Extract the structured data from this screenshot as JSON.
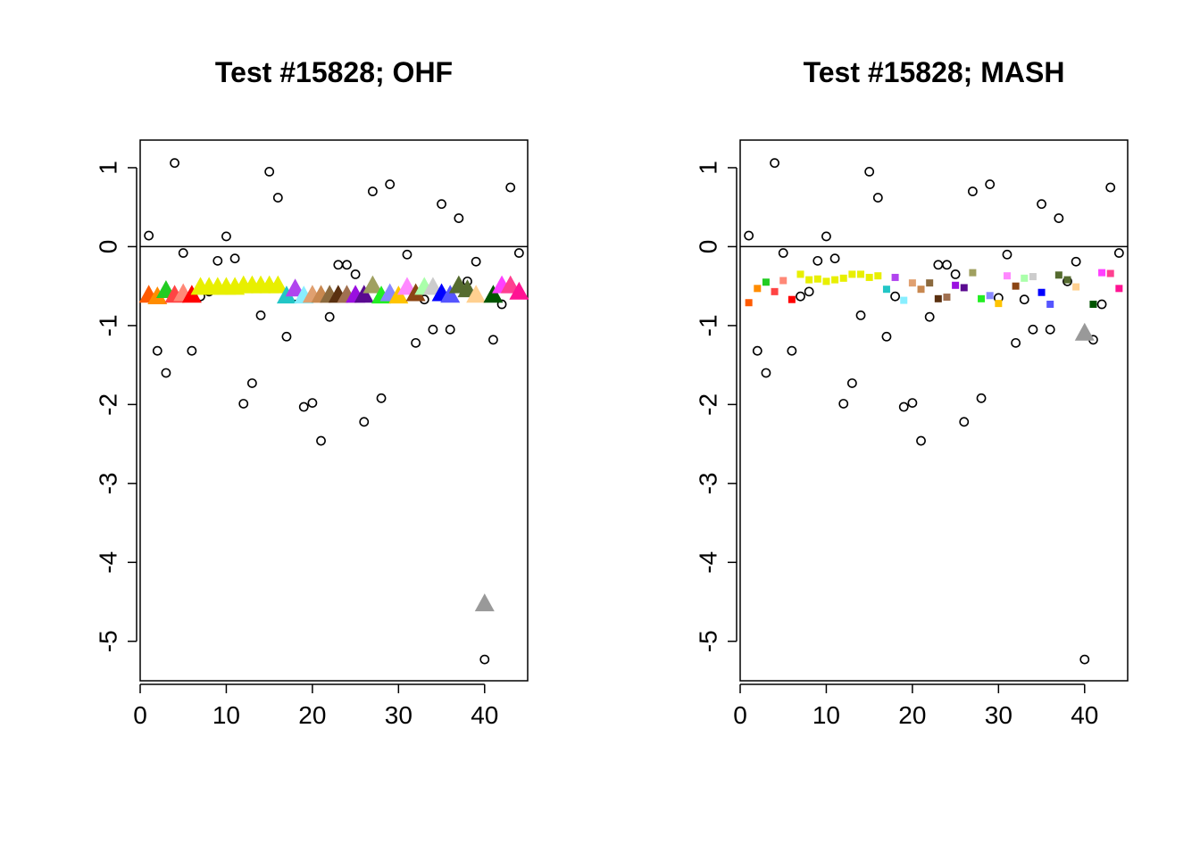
{
  "chart_data": [
    {
      "type": "scatter",
      "title": "Test #15828; OHF",
      "xlabel": "",
      "ylabel": "",
      "xlim": [
        0,
        45
      ],
      "ylim": [
        -5.5,
        1.35
      ],
      "x_ticks": [
        0,
        10,
        20,
        30,
        40
      ],
      "y_ticks": [
        1,
        0,
        -1,
        -2,
        -3,
        -4,
        -5
      ],
      "reference_line_y": 0,
      "series": [
        {
          "marker": "open-circle",
          "color": "#000000",
          "x": [
            1,
            2,
            3,
            4,
            5,
            6,
            7,
            8,
            9,
            10,
            11,
            12,
            13,
            14,
            15,
            16,
            17,
            18,
            19,
            20,
            21,
            22,
            23,
            24,
            25,
            26,
            27,
            28,
            29,
            30,
            31,
            32,
            33,
            34,
            35,
            36,
            37,
            38,
            39,
            40,
            41,
            42,
            43,
            44
          ],
          "y": [
            0.14,
            -1.32,
            -1.6,
            1.06,
            -0.08,
            -1.32,
            -0.63,
            -0.57,
            -0.18,
            0.13,
            -0.15,
            -1.99,
            -1.73,
            -0.87,
            0.95,
            0.62,
            -1.14,
            -0.63,
            -2.03,
            -1.98,
            -2.46,
            -0.89,
            -0.23,
            -0.23,
            -0.35,
            -2.22,
            0.7,
            -1.92,
            0.79,
            -0.65,
            -0.1,
            -1.22,
            -0.67,
            -1.05,
            0.54,
            -1.05,
            0.36,
            -0.44,
            -0.19,
            -5.23,
            -1.18,
            -0.73,
            0.75,
            -0.08
          ]
        },
        {
          "marker": "filled-triangle",
          "x": [
            1,
            2,
            3,
            4,
            5,
            6,
            7,
            8,
            9,
            10,
            11,
            12,
            13,
            14,
            15,
            16,
            17,
            18,
            19,
            20,
            21,
            22,
            23,
            24,
            25,
            26,
            27,
            28,
            29,
            30,
            31,
            32,
            33,
            34,
            35,
            36,
            37,
            38,
            39,
            40,
            41,
            42,
            43,
            44
          ],
          "y": [
            -0.62,
            -0.64,
            -0.56,
            -0.62,
            -0.6,
            -0.62,
            -0.52,
            -0.52,
            -0.52,
            -0.52,
            -0.52,
            -0.5,
            -0.5,
            -0.5,
            -0.5,
            -0.5,
            -0.63,
            -0.54,
            -0.63,
            -0.62,
            -0.62,
            -0.62,
            -0.62,
            -0.62,
            -0.62,
            -0.62,
            -0.5,
            -0.63,
            -0.6,
            -0.63,
            -0.52,
            -0.6,
            -0.52,
            -0.52,
            -0.6,
            -0.62,
            -0.5,
            -0.55,
            -0.62,
            -4.53,
            -0.62,
            -0.5,
            -0.5,
            -0.58
          ],
          "colors": [
            "#ff5a00",
            "#ff8c00",
            "#22cc22",
            "#ff4444",
            "#ff8877",
            "#ff0000",
            "#e8ef00",
            "#e8ef00",
            "#e8ef00",
            "#e8ef00",
            "#e8ef00",
            "#e8ef00",
            "#e8ef00",
            "#e8ef00",
            "#e8ef00",
            "#e8ef00",
            "#22c6c6",
            "#b044ee",
            "#88eeff",
            "#e0a070",
            "#c88850",
            "#8b6a3e",
            "#5a3010",
            "#a07050",
            "#9a10e0",
            "#5a0a90",
            "#a0a060",
            "#22ee22",
            "#8888ff",
            "#ffc400",
            "#ff88ff",
            "#8b4513",
            "#aaffaa",
            "#cccccc",
            "#0000ff",
            "#5555ff",
            "#556b2f",
            "#556b2f",
            "#ffd090",
            "#999999",
            "#005500",
            "#ff40ff",
            "#ff4090",
            "#ff1493"
          ]
        }
      ]
    },
    {
      "type": "scatter",
      "title": "Test #15828; MASH",
      "xlabel": "",
      "ylabel": "",
      "xlim": [
        0,
        45
      ],
      "ylim": [
        -5.5,
        1.35
      ],
      "x_ticks": [
        0,
        10,
        20,
        30,
        40
      ],
      "y_ticks": [
        1,
        0,
        -1,
        -2,
        -3,
        -4,
        -5
      ],
      "reference_line_y": 0,
      "series": [
        {
          "marker": "open-circle",
          "color": "#000000",
          "x": [
            1,
            2,
            3,
            4,
            5,
            6,
            7,
            8,
            9,
            10,
            11,
            12,
            13,
            14,
            15,
            16,
            17,
            18,
            19,
            20,
            21,
            22,
            23,
            24,
            25,
            26,
            27,
            28,
            29,
            30,
            31,
            32,
            33,
            34,
            35,
            36,
            37,
            38,
            39,
            40,
            41,
            42,
            43,
            44
          ],
          "y": [
            0.14,
            -1.32,
            -1.6,
            1.06,
            -0.08,
            -1.32,
            -0.63,
            -0.57,
            -0.18,
            0.13,
            -0.15,
            -1.99,
            -1.73,
            -0.87,
            0.95,
            0.62,
            -1.14,
            -0.63,
            -2.03,
            -1.98,
            -2.46,
            -0.89,
            -0.23,
            -0.23,
            -0.35,
            -2.22,
            0.7,
            -1.92,
            0.79,
            -0.65,
            -0.1,
            -1.22,
            -0.67,
            -1.05,
            0.54,
            -1.05,
            0.36,
            -0.44,
            -0.19,
            -5.23,
            -1.18,
            -0.73,
            0.75,
            -0.08
          ]
        },
        {
          "marker": "filled-square",
          "x": [
            1,
            2,
            3,
            4,
            5,
            6,
            7,
            8,
            9,
            10,
            11,
            12,
            13,
            14,
            15,
            16,
            17,
            18,
            19,
            20,
            21,
            22,
            23,
            24,
            25,
            26,
            27,
            28,
            29,
            30,
            31,
            32,
            33,
            34,
            35,
            36,
            37,
            38,
            39,
            40,
            41,
            42,
            43,
            44
          ],
          "y": [
            -0.71,
            -0.53,
            -0.45,
            -0.57,
            -0.43,
            -0.67,
            -0.35,
            -0.42,
            -0.41,
            -0.44,
            -0.42,
            -0.4,
            -0.35,
            -0.35,
            -0.39,
            -0.37,
            -0.54,
            -0.39,
            -0.68,
            -0.46,
            -0.54,
            -0.46,
            -0.66,
            -0.64,
            -0.49,
            -0.52,
            -0.33,
            -0.66,
            -0.62,
            -0.72,
            -0.37,
            -0.5,
            -0.4,
            -0.38,
            -0.58,
            -0.73,
            -0.36,
            -0.42,
            -0.51,
            -1.1,
            -0.73,
            -0.33,
            -0.34,
            -0.53
          ],
          "colors": [
            "#ff5a00",
            "#ff8c00",
            "#22cc22",
            "#ff4444",
            "#ff8877",
            "#ff0000",
            "#e8ef00",
            "#e8ef00",
            "#e8ef00",
            "#e8ef00",
            "#e8ef00",
            "#e8ef00",
            "#e8ef00",
            "#e8ef00",
            "#e8ef00",
            "#e8ef00",
            "#22c6c6",
            "#b044ee",
            "#88eeff",
            "#e0a070",
            "#c88850",
            "#8b6a3e",
            "#5a3010",
            "#a07050",
            "#9a10e0",
            "#5a0a90",
            "#a0a060",
            "#22ee22",
            "#8888ff",
            "#ffc400",
            "#ff88ff",
            "#8b4513",
            "#aaffaa",
            "#cccccc",
            "#0000ff",
            "#5555ff",
            "#556b2f",
            "#556b2f",
            "#ffd090",
            "#999999",
            "#005500",
            "#ff40ff",
            "#ff4090",
            "#ff1493"
          ]
        }
      ]
    }
  ]
}
